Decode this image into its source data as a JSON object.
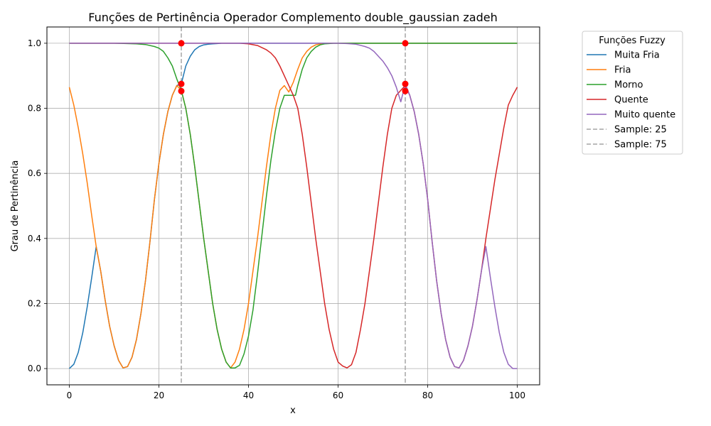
{
  "chart_data": {
    "type": "line",
    "title": "Funções de Pertinência Operador Complemento double_gaussian zadeh",
    "xlabel": "x",
    "ylabel": "Grau de Pertinência",
    "xlim": [
      -5,
      105
    ],
    "ylim": [
      -0.05,
      1.05
    ],
    "xticks": [
      0,
      20,
      40,
      60,
      80,
      100
    ],
    "yticks": [
      0.0,
      0.2,
      0.4,
      0.6,
      0.8,
      1.0
    ],
    "xtick_labels": [
      "0",
      "20",
      "40",
      "60",
      "80",
      "100"
    ],
    "ytick_labels": [
      "0.0",
      "0.2",
      "0.4",
      "0.6",
      "0.8",
      "1.0"
    ],
    "grid": true,
    "legend": {
      "title": "Funções Fuzzy",
      "placement": "outside-right-top",
      "entries": [
        "Muita Fria",
        "Fria",
        "Morno",
        "Quente",
        "Muito quente",
        "Sample: 25",
        "Sample: 75"
      ]
    },
    "series": [
      {
        "name": "Muita Fria",
        "color": "#1f77b4",
        "x": [
          0,
          1,
          2,
          3,
          4,
          5,
          6,
          7,
          8,
          9,
          10,
          11,
          12,
          13,
          14,
          15,
          16,
          17,
          18,
          19,
          20,
          21,
          22,
          23,
          24,
          25,
          26,
          27,
          28,
          29,
          30,
          31,
          32,
          33,
          34,
          35,
          36,
          37,
          38,
          40,
          45,
          50,
          100
        ],
        "values": [
          0,
          0.013,
          0.05,
          0.11,
          0.19,
          0.28,
          0.375,
          0.3,
          0.21,
          0.13,
          0.07,
          0.025,
          0.002,
          0.006,
          0.035,
          0.09,
          0.17,
          0.27,
          0.39,
          0.52,
          0.63,
          0.72,
          0.79,
          0.84,
          0.87,
          0.875,
          0.93,
          0.96,
          0.98,
          0.99,
          0.995,
          0.997,
          0.998,
          0.999,
          1,
          1,
          1,
          1,
          1,
          1,
          1,
          1,
          1
        ]
      },
      {
        "name": "Fria",
        "color": "#ff7f0e",
        "x": [
          0,
          1,
          2,
          3,
          4,
          5,
          6,
          7,
          8,
          9,
          10,
          11,
          12,
          13,
          14,
          15,
          16,
          17,
          18,
          19,
          20,
          21,
          22,
          23,
          24,
          25,
          26,
          27,
          28,
          29,
          30,
          31,
          32,
          33,
          34,
          35,
          36,
          37,
          38,
          39,
          40,
          41,
          42,
          43,
          44,
          45,
          46,
          47,
          48,
          49,
          50,
          51,
          52,
          53,
          54,
          55,
          56,
          57,
          58,
          59,
          60,
          100
        ],
        "values": [
          0.865,
          0.81,
          0.74,
          0.66,
          0.57,
          0.47,
          0.375,
          0.3,
          0.21,
          0.13,
          0.07,
          0.025,
          0.002,
          0.006,
          0.035,
          0.09,
          0.17,
          0.27,
          0.39,
          0.52,
          0.63,
          0.72,
          0.79,
          0.84,
          0.87,
          0.855,
          0.8,
          0.72,
          0.62,
          0.51,
          0.4,
          0.3,
          0.2,
          0.12,
          0.06,
          0.02,
          0.002,
          0.02,
          0.06,
          0.12,
          0.2,
          0.3,
          0.4,
          0.51,
          0.62,
          0.72,
          0.8,
          0.855,
          0.87,
          0.85,
          0.88,
          0.92,
          0.955,
          0.975,
          0.988,
          0.995,
          0.998,
          0.999,
          1,
          1,
          1,
          1
        ]
      },
      {
        "name": "Morno",
        "color": "#2ca02c",
        "x": [
          0,
          10,
          15,
          17,
          19,
          20,
          21,
          22,
          23,
          24,
          25,
          26,
          27,
          28,
          29,
          30,
          31,
          32,
          33,
          34,
          35,
          36,
          37,
          38,
          39,
          40,
          41,
          42,
          43,
          44,
          45,
          46,
          47,
          48,
          49,
          50,
          50.5,
          51,
          52,
          53,
          54,
          55,
          56,
          57,
          58,
          59,
          60,
          62,
          65,
          70,
          100
        ],
        "values": [
          1,
          1,
          0.998,
          0.996,
          0.99,
          0.985,
          0.975,
          0.955,
          0.93,
          0.89,
          0.855,
          0.8,
          0.72,
          0.62,
          0.51,
          0.4,
          0.3,
          0.2,
          0.12,
          0.06,
          0.02,
          0.002,
          0.002,
          0.01,
          0.045,
          0.1,
          0.18,
          0.29,
          0.41,
          0.53,
          0.64,
          0.73,
          0.8,
          0.84,
          0.84,
          0.84,
          0.84,
          0.87,
          0.92,
          0.955,
          0.975,
          0.988,
          0.995,
          0.998,
          0.999,
          1,
          1,
          1,
          1,
          1,
          1
        ]
      },
      {
        "name": "Quente",
        "color": "#d62728",
        "x": [
          0,
          30,
          38,
          40,
          42,
          44,
          45,
          46,
          47,
          48,
          49,
          50,
          51,
          52,
          53,
          54,
          55,
          56,
          57,
          58,
          59,
          60,
          61,
          62,
          63,
          64,
          65,
          66,
          67,
          68,
          69,
          70,
          71,
          72,
          73,
          74,
          75,
          76,
          77,
          78,
          79,
          80,
          81,
          82,
          83,
          84,
          85,
          86,
          87,
          88,
          89,
          90,
          91,
          92,
          93,
          94,
          95,
          96,
          97,
          98,
          99,
          100
        ],
        "values": [
          1,
          1,
          1,
          0.998,
          0.993,
          0.98,
          0.97,
          0.955,
          0.93,
          0.9,
          0.87,
          0.84,
          0.8,
          0.72,
          0.62,
          0.51,
          0.4,
          0.3,
          0.2,
          0.12,
          0.06,
          0.02,
          0.008,
          0.002,
          0.012,
          0.05,
          0.12,
          0.2,
          0.3,
          0.4,
          0.51,
          0.62,
          0.72,
          0.8,
          0.84,
          0.855,
          0.87,
          0.84,
          0.79,
          0.72,
          0.63,
          0.52,
          0.39,
          0.27,
          0.17,
          0.09,
          0.035,
          0.006,
          0.002,
          0.025,
          0.07,
          0.13,
          0.21,
          0.3,
          0.4,
          0.49,
          0.58,
          0.66,
          0.74,
          0.81,
          0.84,
          0.865
        ]
      },
      {
        "name": "Muito quente",
        "color": "#9467bd",
        "x": [
          0,
          60,
          62,
          64,
          66,
          67,
          68,
          69,
          70,
          71,
          72,
          73,
          74,
          75,
          76,
          77,
          78,
          79,
          80,
          81,
          82,
          83,
          84,
          85,
          86,
          87,
          88,
          89,
          90,
          91,
          92,
          93,
          94,
          95,
          96,
          97,
          98,
          99,
          100
        ],
        "values": [
          1,
          1,
          0.999,
          0.997,
          0.99,
          0.985,
          0.975,
          0.96,
          0.945,
          0.925,
          0.9,
          0.865,
          0.82,
          0.875,
          0.84,
          0.79,
          0.72,
          0.63,
          0.52,
          0.39,
          0.27,
          0.17,
          0.09,
          0.035,
          0.006,
          0.002,
          0.025,
          0.07,
          0.13,
          0.21,
          0.3,
          0.375,
          0.28,
          0.19,
          0.11,
          0.05,
          0.013,
          0,
          0
        ]
      }
    ],
    "vlines": [
      {
        "name": "Sample: 25",
        "x": 25,
        "color": "#a6a6a6",
        "style": "dashed"
      },
      {
        "name": "Sample: 75",
        "x": 75,
        "color": "#a6a6a6",
        "style": "dashed"
      }
    ],
    "markers": [
      {
        "x": 25,
        "y": 1.0,
        "color": "#ff0000"
      },
      {
        "x": 25,
        "y": 0.875,
        "color": "#ff0000"
      },
      {
        "x": 25,
        "y": 0.853,
        "color": "#ff0000"
      },
      {
        "x": 75,
        "y": 1.0,
        "color": "#ff0000"
      },
      {
        "x": 75,
        "y": 0.875,
        "color": "#ff0000"
      },
      {
        "x": 75,
        "y": 0.853,
        "color": "#ff0000"
      }
    ]
  }
}
